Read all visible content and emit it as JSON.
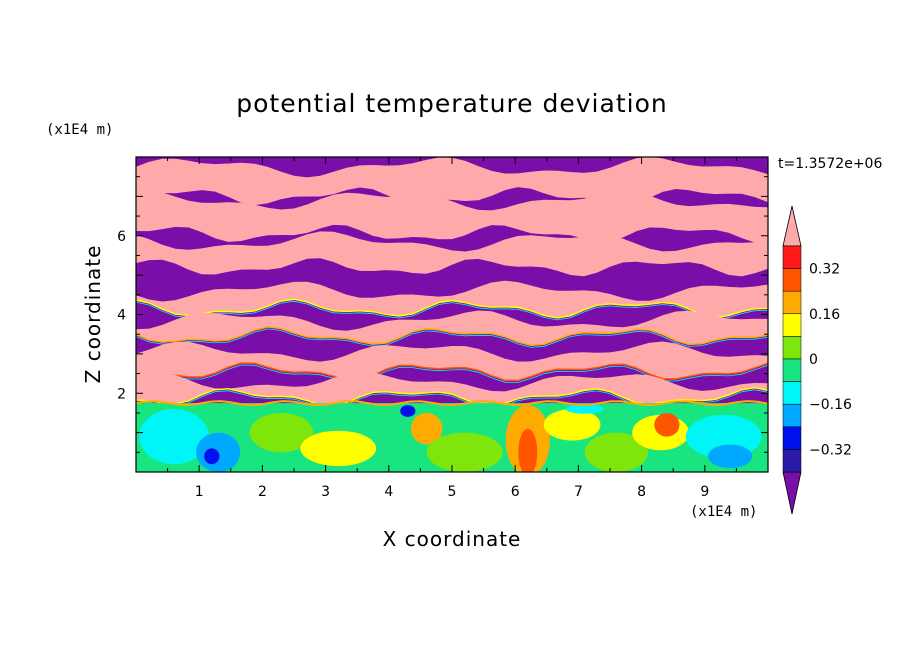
{
  "chart_data": {
    "type": "heatmap",
    "title": "potential temperature deviation",
    "xlabel": "X coordinate",
    "ylabel": "Z coordinate",
    "x_unit": "(x1E4 m)",
    "y_unit": "(x1E4 m)",
    "time_label": "t=1.3572e+06",
    "xlim": [
      0,
      10
    ],
    "ylim": [
      0,
      8
    ],
    "xticks": [
      1,
      2,
      3,
      4,
      5,
      6,
      7,
      8,
      9
    ],
    "yticks": [
      2,
      4,
      6
    ],
    "colorbar": {
      "levels": [
        -0.4,
        -0.32,
        -0.24,
        -0.16,
        -0.08,
        0,
        0.08,
        0.16,
        0.24,
        0.32,
        0.4
      ],
      "tick_labels": [
        "0.32",
        "0.16",
        "0",
        "−0.16",
        "−0.32"
      ],
      "tick_values": [
        0.32,
        0.16,
        0,
        -0.16,
        -0.32
      ],
      "colors": [
        "#7a0ea8",
        "#2a1aa8",
        "#0011ee",
        "#00a8ff",
        "#00f6f6",
        "#19e580",
        "#7fe60c",
        "#ffff00",
        "#ffaa00",
        "#ff5500",
        "#ff1a1a",
        "#ffaaaa"
      ],
      "extend": "both"
    },
    "field_description_bands": {
      "upper": "alternating purple (below -0.4) and pink (above 0.4) layers from z=1.8 to z=8",
      "lower": "turbulent layer from z=0 to z=1.8 with values -0.4 to 0.4"
    }
  }
}
